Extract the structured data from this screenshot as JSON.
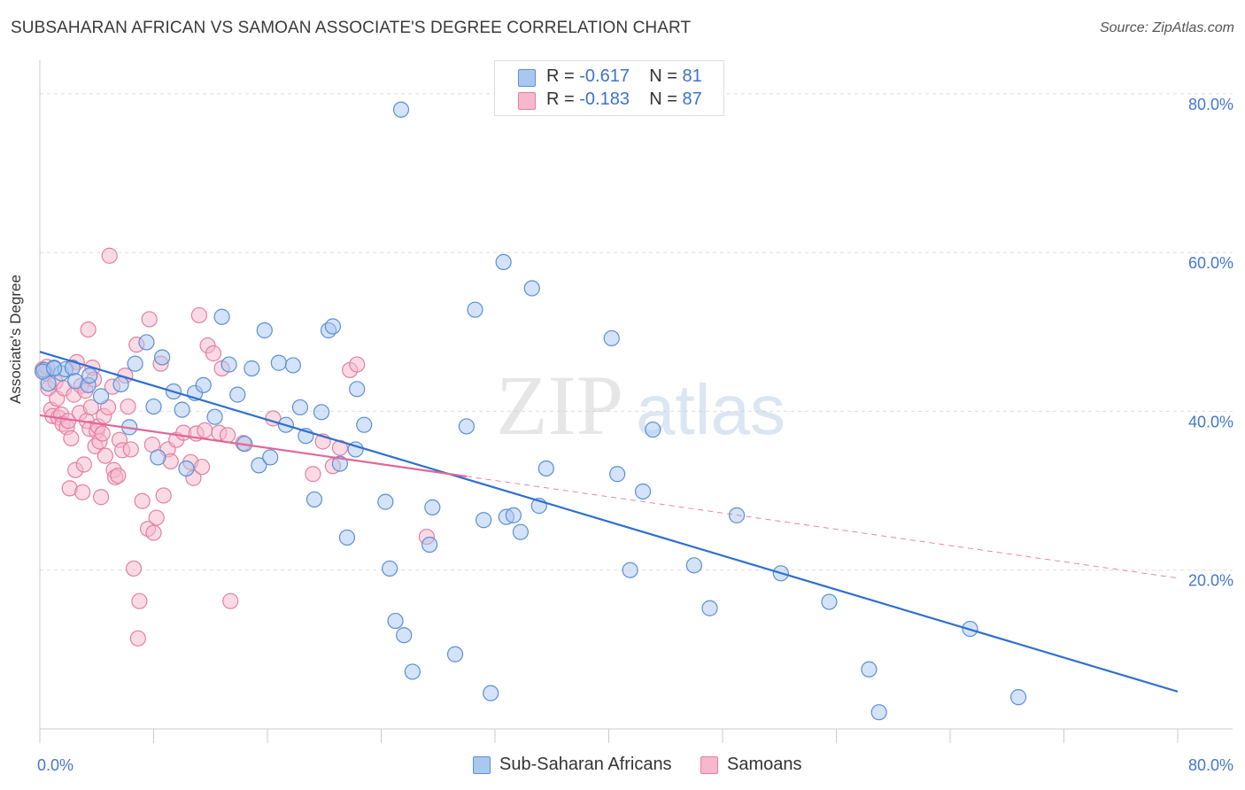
{
  "header": {
    "title": "SUBSAHARAN AFRICAN VS SAMOAN ASSOCIATE'S DEGREE CORRELATION CHART",
    "source": "Source: ZipAtlas.com"
  },
  "legend": {
    "rows": [
      {
        "r_label": "R =",
        "r_value": "-0.617",
        "n_label": "N =",
        "n_value": "81"
      },
      {
        "r_label": "R =",
        "r_value": "-0.183",
        "n_label": "N =",
        "n_value": "87"
      }
    ]
  },
  "watermark": {
    "zip": "ZIP",
    "atlas": "atlas"
  },
  "colors": {
    "blue_fill": "#a9c8ef",
    "blue_stroke": "#5b8fd6",
    "blue_line": "#2f6fce",
    "pink_fill": "#f6b8cc",
    "pink_stroke": "#e57fa0",
    "pink_line": "#e0679a",
    "grid": "#dedede",
    "tick_text": "#4477cc"
  },
  "chart_data": {
    "type": "scatter",
    "title": "SUBSAHARAN AFRICAN VS SAMOAN ASSOCIATE'S DEGREE CORRELATION CHART",
    "xlabel": "",
    "ylabel": "Associate's Degree",
    "xlim": [
      0,
      80
    ],
    "ylim": [
      0,
      84
    ],
    "x_tick_labels": [
      "0.0%",
      "80.0%"
    ],
    "y_ticks": [
      20,
      40,
      60,
      80
    ],
    "y_tick_labels": [
      "20.0%",
      "40.0%",
      "60.0%",
      "80.0%"
    ],
    "grid": true,
    "legend_position": "top-center",
    "series": [
      {
        "name": "Sub-Saharan Africans",
        "color": "#5b8fd6",
        "trend": {
          "x": [
            0,
            80
          ],
          "y": [
            47.5,
            4.7
          ]
        },
        "points": [
          [
            0.3,
            45.2
          ],
          [
            0.6,
            43.5
          ],
          [
            1.0,
            45.5
          ],
          [
            1.5,
            44.8
          ],
          [
            1.8,
            45.3
          ],
          [
            2.3,
            45.5
          ],
          [
            2.5,
            43.8
          ],
          [
            3.4,
            43.3
          ],
          [
            3.5,
            44.5
          ],
          [
            4.3,
            41.9
          ],
          [
            5.7,
            43.4
          ],
          [
            6.3,
            38.0
          ],
          [
            6.7,
            46.0
          ],
          [
            7.5,
            48.7
          ],
          [
            8.0,
            40.6
          ],
          [
            8.3,
            34.2
          ],
          [
            8.6,
            46.8
          ],
          [
            9.4,
            42.5
          ],
          [
            10.0,
            40.2
          ],
          [
            10.3,
            32.8
          ],
          [
            10.9,
            42.3
          ],
          [
            11.5,
            43.3
          ],
          [
            12.3,
            39.3
          ],
          [
            12.8,
            51.9
          ],
          [
            13.3,
            45.9
          ],
          [
            13.9,
            42.1
          ],
          [
            14.4,
            35.9
          ],
          [
            14.9,
            45.4
          ],
          [
            15.4,
            33.2
          ],
          [
            15.8,
            50.2
          ],
          [
            16.2,
            34.2
          ],
          [
            16.8,
            46.1
          ],
          [
            17.3,
            38.3
          ],
          [
            17.8,
            45.8
          ],
          [
            18.3,
            40.5
          ],
          [
            18.7,
            36.9
          ],
          [
            19.3,
            28.9
          ],
          [
            19.8,
            39.9
          ],
          [
            20.3,
            50.2
          ],
          [
            20.6,
            50.7
          ],
          [
            21.1,
            33.4
          ],
          [
            21.6,
            24.1
          ],
          [
            22.3,
            42.8
          ],
          [
            22.8,
            38.3
          ],
          [
            22.2,
            35.2
          ],
          [
            24.3,
            28.6
          ],
          [
            24.6,
            20.2
          ],
          [
            25.0,
            13.6
          ],
          [
            25.6,
            11.8
          ],
          [
            25.4,
            78.0
          ],
          [
            26.2,
            7.2
          ],
          [
            27.6,
            27.9
          ],
          [
            27.4,
            23.2
          ],
          [
            29.2,
            9.4
          ],
          [
            30.0,
            38.1
          ],
          [
            30.6,
            52.8
          ],
          [
            31.2,
            26.3
          ],
          [
            31.7,
            4.5
          ],
          [
            32.6,
            58.8
          ],
          [
            32.8,
            26.7
          ],
          [
            33.3,
            26.9
          ],
          [
            33.8,
            24.8
          ],
          [
            34.6,
            55.5
          ],
          [
            35.1,
            28.1
          ],
          [
            35.6,
            32.8
          ],
          [
            40.2,
            49.2
          ],
          [
            40.6,
            32.1
          ],
          [
            41.5,
            20.0
          ],
          [
            42.4,
            29.9
          ],
          [
            43.1,
            37.7
          ],
          [
            46.0,
            20.6
          ],
          [
            47.1,
            15.2
          ],
          [
            49.0,
            26.9
          ],
          [
            52.1,
            19.6
          ],
          [
            55.5,
            16.0
          ],
          [
            58.3,
            7.5
          ],
          [
            59.0,
            2.1
          ],
          [
            65.4,
            12.6
          ],
          [
            68.8,
            4.0
          ],
          [
            0.2,
            45.0
          ],
          [
            1.0,
            45.4
          ]
        ]
      },
      {
        "name": "Samoans",
        "color": "#e57fa0",
        "trend": {
          "x": [
            0,
            30
          ],
          "y": [
            39.5,
            31.8
          ]
        },
        "trend_extension": {
          "x": [
            30,
            80
          ],
          "y": [
            31.8,
            19.0
          ]
        },
        "points": [
          [
            0.2,
            45.3
          ],
          [
            0.4,
            44.8
          ],
          [
            0.6,
            42.9
          ],
          [
            0.8,
            40.2
          ],
          [
            0.9,
            39.4
          ],
          [
            1.1,
            43.7
          ],
          [
            1.2,
            41.6
          ],
          [
            1.3,
            39.2
          ],
          [
            1.5,
            39.6
          ],
          [
            1.6,
            38.4
          ],
          [
            1.7,
            42.9
          ],
          [
            1.9,
            38.0
          ],
          [
            2.0,
            38.8
          ],
          [
            2.1,
            30.3
          ],
          [
            2.2,
            36.6
          ],
          [
            2.4,
            42.1
          ],
          [
            2.5,
            32.6
          ],
          [
            2.6,
            46.2
          ],
          [
            2.8,
            39.8
          ],
          [
            2.9,
            43.2
          ],
          [
            3.0,
            29.8
          ],
          [
            3.1,
            33.3
          ],
          [
            3.2,
            42.6
          ],
          [
            3.3,
            38.8
          ],
          [
            3.4,
            50.3
          ],
          [
            3.5,
            37.8
          ],
          [
            3.6,
            40.5
          ],
          [
            3.7,
            45.5
          ],
          [
            3.8,
            44.0
          ],
          [
            3.9,
            35.6
          ],
          [
            4.0,
            37.5
          ],
          [
            4.1,
            38.1
          ],
          [
            4.2,
            36.2
          ],
          [
            4.3,
            29.2
          ],
          [
            4.4,
            37.2
          ],
          [
            4.5,
            39.4
          ],
          [
            4.6,
            34.4
          ],
          [
            4.8,
            40.5
          ],
          [
            4.9,
            59.6
          ],
          [
            5.1,
            43.1
          ],
          [
            5.2,
            32.6
          ],
          [
            5.3,
            31.7
          ],
          [
            5.5,
            31.9
          ],
          [
            5.6,
            36.4
          ],
          [
            5.8,
            35.1
          ],
          [
            6.0,
            44.5
          ],
          [
            6.2,
            40.6
          ],
          [
            6.4,
            35.2
          ],
          [
            6.6,
            20.2
          ],
          [
            6.8,
            48.4
          ],
          [
            6.9,
            11.4
          ],
          [
            7.0,
            16.1
          ],
          [
            7.2,
            28.7
          ],
          [
            7.6,
            25.2
          ],
          [
            7.7,
            51.6
          ],
          [
            7.9,
            35.8
          ],
          [
            8.0,
            24.7
          ],
          [
            8.2,
            26.6
          ],
          [
            8.5,
            46.0
          ],
          [
            8.7,
            29.4
          ],
          [
            9.0,
            35.2
          ],
          [
            9.2,
            33.7
          ],
          [
            9.6,
            36.4
          ],
          [
            10.1,
            37.3
          ],
          [
            10.6,
            33.6
          ],
          [
            10.8,
            31.6
          ],
          [
            11.0,
            37.2
          ],
          [
            11.2,
            52.1
          ],
          [
            11.4,
            33.0
          ],
          [
            11.6,
            37.6
          ],
          [
            11.8,
            48.3
          ],
          [
            12.2,
            47.3
          ],
          [
            12.6,
            37.3
          ],
          [
            12.8,
            45.4
          ],
          [
            13.2,
            37.0
          ],
          [
            13.4,
            16.1
          ],
          [
            14.3,
            36.0
          ],
          [
            16.4,
            39.1
          ],
          [
            19.2,
            32.1
          ],
          [
            19.9,
            36.2
          ],
          [
            20.6,
            33.1
          ],
          [
            21.1,
            35.4
          ],
          [
            21.8,
            45.2
          ],
          [
            22.3,
            45.9
          ],
          [
            27.2,
            24.2
          ],
          [
            0.5,
            45.6
          ],
          [
            2.3,
            45.5
          ]
        ]
      }
    ]
  },
  "bottom_legend": {
    "items": [
      {
        "label": "Sub-Saharan Africans"
      },
      {
        "label": "Samoans"
      }
    ]
  }
}
